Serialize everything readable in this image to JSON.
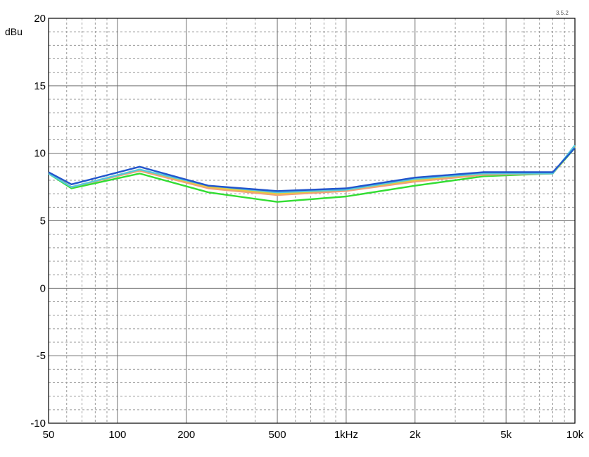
{
  "chart_data": {
    "type": "line",
    "version_label": "3.5.2",
    "ylabel": "dBu",
    "xscale": "log",
    "xlim": [
      50,
      10000
    ],
    "ylim": [
      -10,
      20
    ],
    "grid": true,
    "x_ticks": [
      {
        "value": 50,
        "label": "50"
      },
      {
        "value": 100,
        "label": "100"
      },
      {
        "value": 200,
        "label": "200"
      },
      {
        "value": 500,
        "label": "500"
      },
      {
        "value": 1000,
        "label": "1kHz"
      },
      {
        "value": 2000,
        "label": "2k"
      },
      {
        "value": 5000,
        "label": "5k"
      },
      {
        "value": 10000,
        "label": "10k"
      }
    ],
    "y_ticks": [
      {
        "value": 20,
        "label": "20"
      },
      {
        "value": 15,
        "label": "15"
      },
      {
        "value": 10,
        "label": "10"
      },
      {
        "value": 5,
        "label": "5"
      },
      {
        "value": 0,
        "label": "0"
      },
      {
        "value": -5,
        "label": "-5"
      },
      {
        "value": -10,
        "label": "-10"
      }
    ],
    "x": [
      50,
      63,
      125,
      250,
      500,
      1000,
      2000,
      4000,
      8000,
      10000
    ],
    "series": [
      {
        "color": "#33dd33",
        "values": [
          8.5,
          7.4,
          8.5,
          7.1,
          6.4,
          6.8,
          7.6,
          8.3,
          8.5,
          10.4
        ]
      },
      {
        "color": "#f2a07a",
        "values": [
          8.6,
          7.5,
          8.7,
          7.4,
          6.9,
          7.2,
          7.9,
          8.4,
          8.5,
          10.5
        ]
      },
      {
        "color": "#e8c840",
        "values": [
          8.6,
          7.5,
          8.8,
          7.5,
          7.0,
          7.3,
          8.0,
          8.5,
          8.5,
          10.5
        ]
      },
      {
        "color": "#55c8dd",
        "values": [
          8.5,
          7.5,
          8.8,
          7.6,
          7.1,
          7.3,
          8.1,
          8.5,
          8.5,
          10.6
        ]
      },
      {
        "color": "#2255cc",
        "values": [
          8.6,
          7.7,
          9.0,
          7.6,
          7.2,
          7.4,
          8.2,
          8.6,
          8.6,
          10.4
        ]
      }
    ]
  }
}
